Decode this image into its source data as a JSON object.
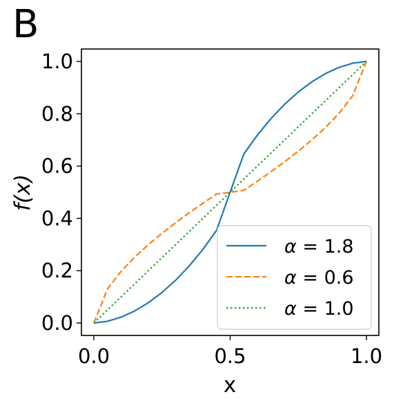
{
  "panel_label": "B",
  "chart_data": {
    "type": "line",
    "xlabel": "x",
    "ylabel": "f(x)",
    "xlim": [
      0.0,
      1.0
    ],
    "ylim": [
      0.0,
      1.0
    ],
    "x_ticks": [
      "0.0",
      "0.5",
      "1.0"
    ],
    "y_ticks": [
      "0.0",
      "0.2",
      "0.4",
      "0.6",
      "0.8",
      "1.0"
    ],
    "grid": false,
    "legend_position": "lower-right",
    "series": [
      {
        "name": "α = 1.8",
        "label_symbol": "α",
        "label_value": "= 1.8",
        "alpha": 1.8,
        "color": "#1f77b4",
        "style": "solid",
        "x": [
          0.0,
          0.05,
          0.1,
          0.15,
          0.2,
          0.25,
          0.3,
          0.35,
          0.4,
          0.45,
          0.5,
          0.55,
          0.6,
          0.65,
          0.7,
          0.75,
          0.8,
          0.85,
          0.9,
          0.95,
          1.0
        ],
        "y": [
          0.0,
          0.0067,
          0.0225,
          0.0463,
          0.0778,
          0.1168,
          0.1635,
          0.2183,
          0.2815,
          0.3541,
          0.5,
          0.6459,
          0.7185,
          0.7817,
          0.8365,
          0.8832,
          0.9222,
          0.9537,
          0.9775,
          0.9933,
          1.0
        ]
      },
      {
        "name": "α = 0.6",
        "label_symbol": "α",
        "label_value": "= 0.6",
        "alpha": 0.6,
        "color": "#ff7f0e",
        "style": "dashed",
        "x": [
          0.0,
          0.05,
          0.1,
          0.15,
          0.2,
          0.25,
          0.3,
          0.35,
          0.4,
          0.45,
          0.5,
          0.55,
          0.6,
          0.65,
          0.7,
          0.75,
          0.8,
          0.85,
          0.9,
          0.95,
          1.0
        ],
        "y": [
          0.0,
          0.1305,
          0.1978,
          0.2521,
          0.2998,
          0.3431,
          0.3835,
          0.4216,
          0.4579,
          0.4929,
          0.5,
          0.5071,
          0.5421,
          0.5784,
          0.6165,
          0.6569,
          0.7002,
          0.7479,
          0.8022,
          0.8695,
          1.0
        ]
      },
      {
        "name": "α = 1.0",
        "label_symbol": "α",
        "label_value": "= 1.0",
        "alpha": 1.0,
        "color": "#2ca02c",
        "style": "dotted",
        "x": [
          0.0,
          1.0
        ],
        "y": [
          0.0,
          1.0
        ]
      }
    ]
  }
}
